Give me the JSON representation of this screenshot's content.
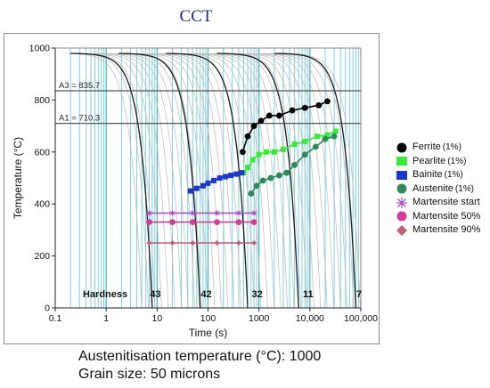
{
  "title": "CCT",
  "chart_data": {
    "type": "line",
    "title": "CCT",
    "xlabel": "Time (s)",
    "ylabel": "Temperature (°C)",
    "x_scale": "log",
    "xlim": [
      0.1,
      100000
    ],
    "ylim": [
      0,
      1000
    ],
    "x_ticks": [
      0.1,
      1,
      10,
      100,
      1000,
      10000,
      100000
    ],
    "x_tick_labels": [
      "0.1",
      "1",
      "10",
      "100",
      "1000",
      "10,000",
      "100,000"
    ],
    "y_ticks": [
      0,
      200,
      400,
      600,
      800,
      1000
    ],
    "y_tick_labels": [
      "0",
      "200",
      "400",
      "600",
      "800",
      "1000"
    ],
    "grid": "x-minor vertical lines",
    "reference_lines": [
      {
        "label": "A3 = 835.7",
        "y": 835.7
      },
      {
        "label": "A1 = 710.3",
        "y": 710.3
      }
    ],
    "hardness": {
      "label": "Hardness",
      "values": [
        "43",
        "42",
        "32",
        "11",
        "7"
      ],
      "x": [
        10,
        100,
        1000,
        10000,
        100000
      ]
    },
    "cooling_curves_start_temp": 980,
    "cooling_curves_bold_end_time": [
      8,
      70,
      600,
      6000,
      80000
    ],
    "series": [
      {
        "name": "Ferrite",
        "pct": "(1%)",
        "color": "#000000",
        "marker": "circle",
        "x": [
          480,
          600,
          800,
          1100,
          1600,
          2500,
          4500,
          8000,
          15000,
          22000
        ],
        "y": [
          600,
          660,
          700,
          720,
          740,
          740,
          760,
          770,
          780,
          795
        ]
      },
      {
        "name": "Pearlite",
        "pct": "(1%)",
        "color": "#33ee33",
        "marker": "square",
        "x": [
          500,
          600,
          750,
          1000,
          1400,
          2000,
          3000,
          5000,
          8000,
          14000,
          22000,
          32000
        ],
        "y": [
          520,
          540,
          570,
          590,
          600,
          600,
          610,
          630,
          640,
          660,
          665,
          680
        ]
      },
      {
        "name": "Bainite",
        "pct": "(1%)",
        "color": "#1a35d6",
        "marker": "square",
        "x": [
          45,
          60,
          80,
          100,
          130,
          170,
          220,
          280,
          360,
          460
        ],
        "y": [
          450,
          460,
          470,
          480,
          490,
          500,
          505,
          510,
          515,
          520
        ]
      },
      {
        "name": "Austenite",
        "pct": "(1%)",
        "color": "#2a8a5a",
        "marker": "circle",
        "x": [
          700,
          900,
          1200,
          1700,
          2500,
          3500,
          5000,
          8000,
          13000,
          20000,
          30000
        ],
        "y": [
          440,
          470,
          490,
          500,
          510,
          520,
          550,
          590,
          620,
          650,
          660
        ]
      },
      {
        "name": "Martensite start",
        "pct": "",
        "color": "#a855c8",
        "marker": "asterisk",
        "x": [
          7,
          20,
          50,
          150,
          400,
          800
        ],
        "y": [
          365,
          365,
          365,
          365,
          365,
          365
        ]
      },
      {
        "name": "Martensite 50%",
        "pct": "",
        "color": "#d63a9a",
        "marker": "circle",
        "x": [
          7,
          20,
          50,
          150,
          400,
          800
        ],
        "y": [
          330,
          330,
          330,
          330,
          330,
          330
        ]
      },
      {
        "name": "Martensite 90%",
        "pct": "",
        "color": "#c0607a",
        "marker": "diamond",
        "x": [
          7,
          20,
          50,
          150,
          400,
          800
        ],
        "y": [
          250,
          250,
          250,
          250,
          250,
          250
        ]
      }
    ]
  },
  "captions": {
    "line1": "Austenitisation temperature (°C): 1000",
    "line2": "Grain size: 50 microns"
  }
}
